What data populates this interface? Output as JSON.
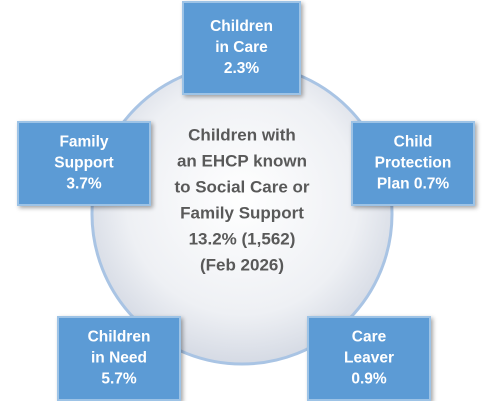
{
  "center": {
    "lines": [
      "Children with",
      "an EHCP known",
      "to Social Care or",
      "Family Support",
      "13.2% (1,562)",
      "(Feb 2026)"
    ]
  },
  "nodes": [
    {
      "lines": [
        "Children",
        "in Care",
        "2.3%"
      ]
    },
    {
      "lines": [
        "Child",
        "Protection",
        "Plan 0.7%"
      ]
    },
    {
      "lines": [
        "Care",
        "Leaver",
        "0.9%"
      ]
    },
    {
      "lines": [
        "Children",
        "in Need",
        "5.7%"
      ]
    },
    {
      "lines": [
        "Family",
        "Support",
        "3.7%"
      ]
    }
  ]
}
